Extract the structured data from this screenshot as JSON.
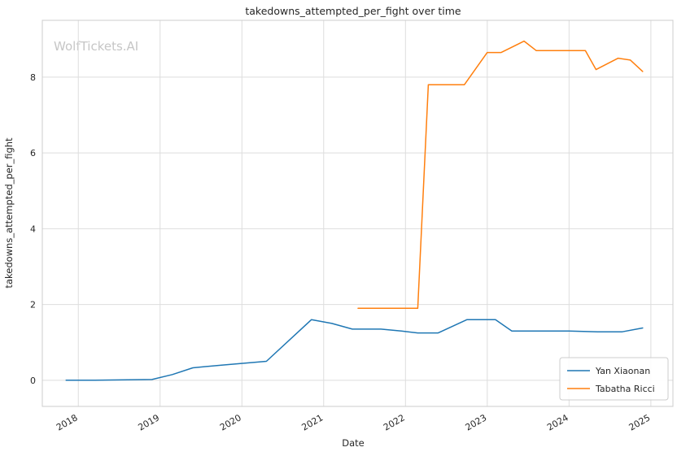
{
  "watermark": "WolfTickets.AI",
  "chart_data": {
    "type": "line",
    "title": "takedowns_attempted_per_fight over time",
    "xlabel": "Date",
    "ylabel": "takedowns_attempted_per_fight",
    "xlim": [
      2017.56,
      2025.27
    ],
    "ylim": [
      -0.69,
      9.5
    ],
    "xticks": [
      2018,
      2019,
      2020,
      2021,
      2022,
      2023,
      2024,
      2025
    ],
    "yticks": [
      0,
      2,
      4,
      6,
      8
    ],
    "grid": true,
    "grid_color": "#dddddd",
    "spine_color": "#cccccc",
    "legend_position": "lower right",
    "series": [
      {
        "name": "Yan Xiaonan",
        "color": "#1f77b4",
        "x": [
          2017.85,
          2018.2,
          2018.9,
          2019.15,
          2019.4,
          2019.75,
          2020.3,
          2020.85,
          2021.1,
          2021.35,
          2021.7,
          2021.95,
          2022.15,
          2022.4,
          2022.75,
          2023.1,
          2023.3,
          2023.65,
          2024.0,
          2024.35,
          2024.65,
          2024.9
        ],
        "y": [
          0.0,
          0.0,
          0.02,
          0.15,
          0.33,
          0.4,
          0.5,
          1.6,
          1.5,
          1.35,
          1.35,
          1.3,
          1.25,
          1.25,
          1.6,
          1.6,
          1.3,
          1.3,
          1.3,
          1.28,
          1.28,
          1.38
        ]
      },
      {
        "name": "Tabatha Ricci",
        "color": "#ff7f0e",
        "x": [
          2021.42,
          2021.8,
          2022.15,
          2022.28,
          2022.5,
          2022.72,
          2023.0,
          2023.17,
          2023.45,
          2023.6,
          2023.9,
          2024.2,
          2024.33,
          2024.6,
          2024.75,
          2024.9
        ],
        "y": [
          1.9,
          1.9,
          1.9,
          7.8,
          7.8,
          7.8,
          8.65,
          8.65,
          8.95,
          8.7,
          8.7,
          8.7,
          8.2,
          8.5,
          8.45,
          8.15
        ]
      }
    ]
  }
}
